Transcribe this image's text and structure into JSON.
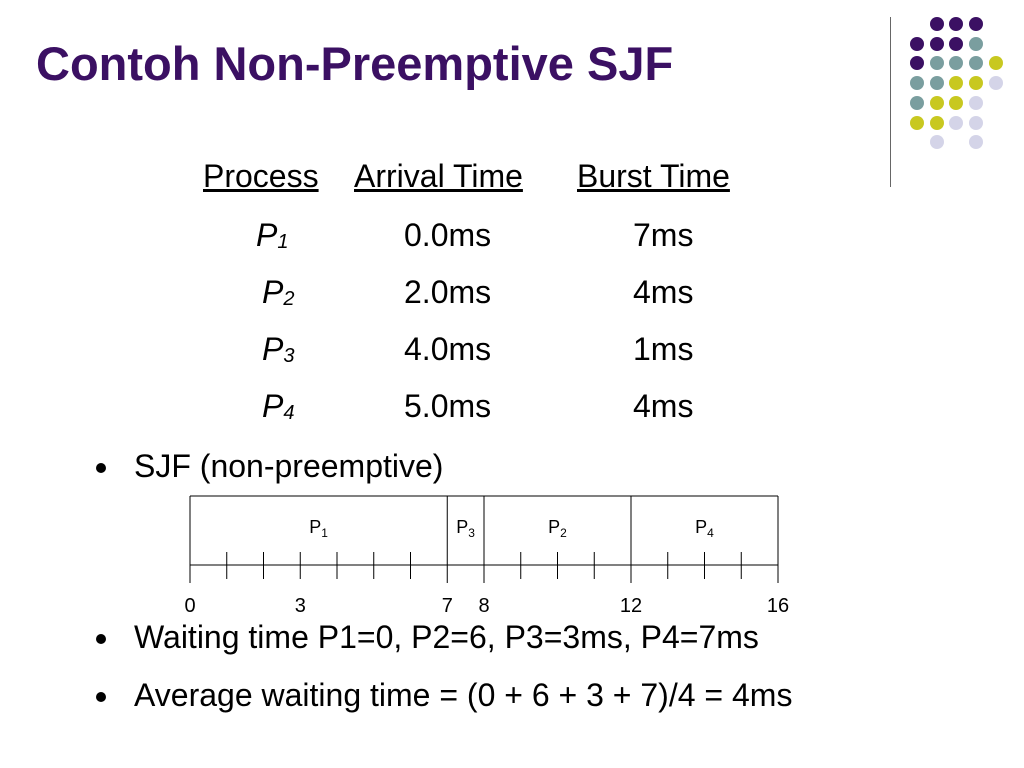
{
  "slide": {
    "title": "Contoh Non-Preemptive SJF"
  },
  "table": {
    "headers": [
      "Process",
      "Arrival Time",
      "Burst Time"
    ],
    "rows": [
      {
        "process": "P",
        "sub": "1",
        "arrival": "0.0ms",
        "burst": "7ms"
      },
      {
        "process": "P",
        "sub": "2",
        "arrival": "2.0ms",
        "burst": "4ms"
      },
      {
        "process": "P",
        "sub": "3",
        "arrival": "4.0ms",
        "burst": "1ms"
      },
      {
        "process": "P",
        "sub": "4",
        "arrival": "5.0ms",
        "burst": "4ms"
      }
    ]
  },
  "bullets": [
    "SJF (non-preemptive)",
    "Waiting time P1=0, P2=6, P3=3ms, P4=7ms",
    "Average waiting time = (0 + 6 + 3 + 7)/4 = 4ms"
  ],
  "gantt": {
    "segments": [
      {
        "name": "P",
        "sub": "1",
        "start": 0,
        "end": 7
      },
      {
        "name": "P",
        "sub": "3",
        "start": 7,
        "end": 8
      },
      {
        "name": "P",
        "sub": "2",
        "start": 8,
        "end": 12
      },
      {
        "name": "P",
        "sub": "4",
        "start": 12,
        "end": 16
      }
    ],
    "axis_labels": [
      {
        "value": 0,
        "label": "0"
      },
      {
        "value": 3,
        "label": "3"
      },
      {
        "value": 7,
        "label": "7"
      },
      {
        "value": 8,
        "label": "8"
      },
      {
        "value": 12,
        "label": "12"
      },
      {
        "value": 16,
        "label": "16"
      }
    ],
    "range": [
      0,
      16
    ]
  },
  "theme": {
    "title_color": "#3b1063",
    "dot_colors": {
      "purple": "#3b1063",
      "teal": "#7a9e9f",
      "olive": "#c8c820",
      "lavender": "#d4d4e8"
    }
  }
}
